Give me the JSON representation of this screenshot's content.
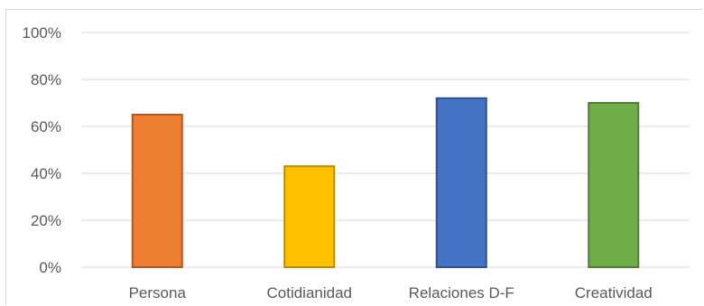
{
  "chart_data": {
    "type": "bar",
    "categories": [
      "Persona",
      "Cotidianidad",
      "Relaciones D-F",
      "Creatividad"
    ],
    "values": [
      65,
      43,
      72,
      70
    ],
    "ylim": [
      0,
      100
    ],
    "yticks": [
      "0%",
      "20%",
      "40%",
      "60%",
      "80%",
      "100%"
    ],
    "colors": [
      "#ed7d31",
      "#ffc000",
      "#4472c4",
      "#70ad47"
    ],
    "border_colors": [
      "#ae5a21",
      "#bc8c00",
      "#2f528f",
      "#507e32"
    ],
    "grid": true
  }
}
